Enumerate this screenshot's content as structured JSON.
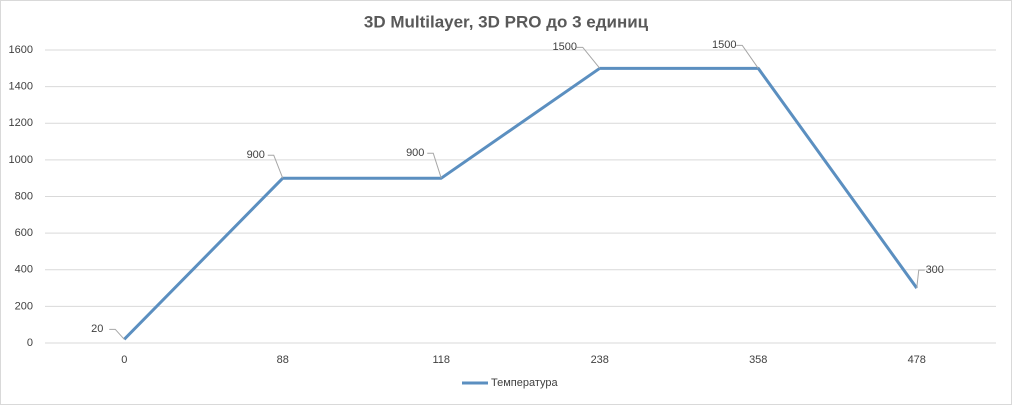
{
  "chart_data": {
    "type": "line",
    "title": "3D Multilayer, 3D PRO до 3 единиц",
    "categories": [
      "0",
      "88",
      "118",
      "238",
      "358",
      "478"
    ],
    "series": [
      {
        "name": "Температура",
        "color": "#5b8fc0",
        "values": [
          20,
          900,
          900,
          1500,
          1500,
          300
        ]
      }
    ],
    "ylim": [
      0,
      1600
    ],
    "yticks": [
      0,
      200,
      400,
      600,
      800,
      1000,
      1200,
      1400,
      1600
    ],
    "grid": true,
    "legend": "bottom",
    "data_labels": true
  }
}
